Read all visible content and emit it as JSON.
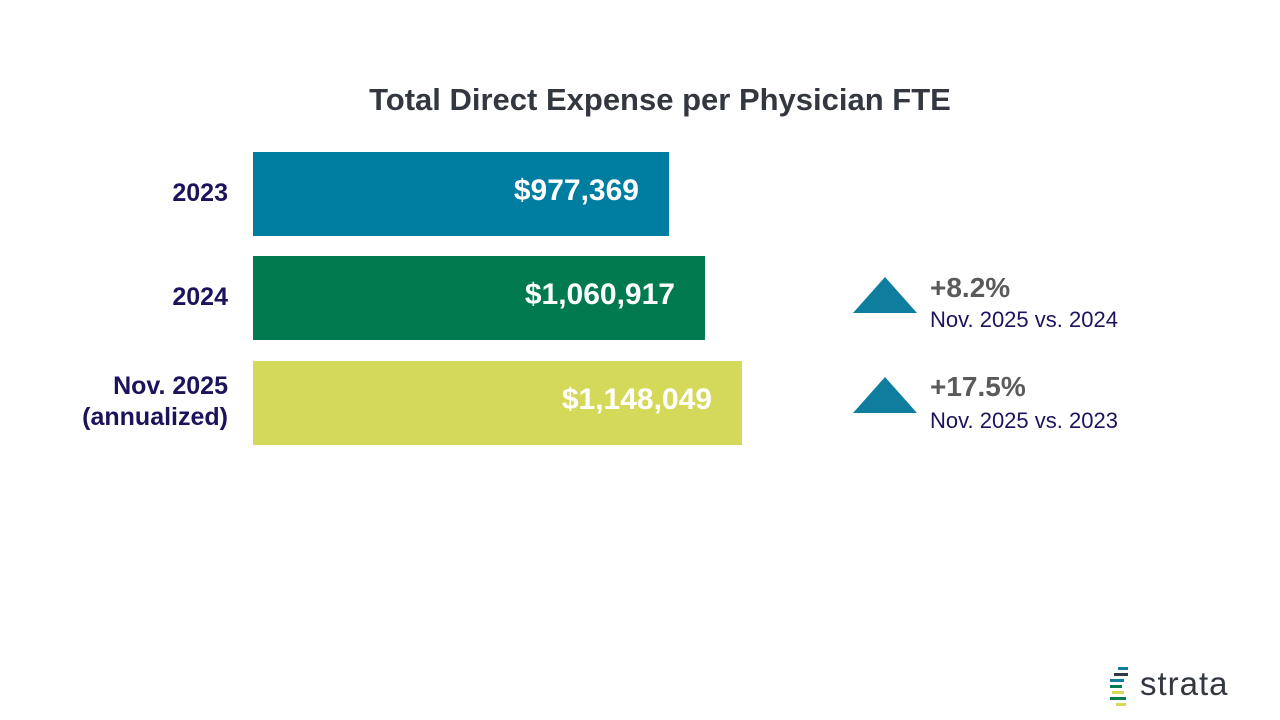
{
  "chart_data": {
    "type": "bar",
    "orientation": "horizontal",
    "title": "Total Direct Expense per Physician FTE",
    "categories": [
      {
        "line1": "2023",
        "line2": ""
      },
      {
        "line1": "2024",
        "line2": ""
      },
      {
        "line1": "Nov. 2025",
        "line2": "(annualized)"
      }
    ],
    "values": [
      977369,
      1060917,
      1148049
    ],
    "value_labels": [
      "$977,369",
      "$1,060,917",
      "$1,148,049"
    ],
    "bar_colors": [
      "#007ea1",
      "#007a4e",
      "#d4d95a"
    ],
    "xlabel": "",
    "ylabel": "",
    "annotations": [
      {
        "row": 1,
        "change": "+8.2%",
        "comparison": "Nov. 2025 vs. 2024",
        "direction": "up",
        "color": "#0f7d9e"
      },
      {
        "row": 2,
        "change": "+17.5%",
        "comparison": "Nov. 2025 vs. 2023",
        "direction": "up",
        "color": "#0f7d9e"
      }
    ]
  },
  "brand": {
    "logo_text": "strata",
    "logo_colors": [
      "#0f7d9e",
      "#007a4e",
      "#d4d95a",
      "#333840"
    ]
  }
}
